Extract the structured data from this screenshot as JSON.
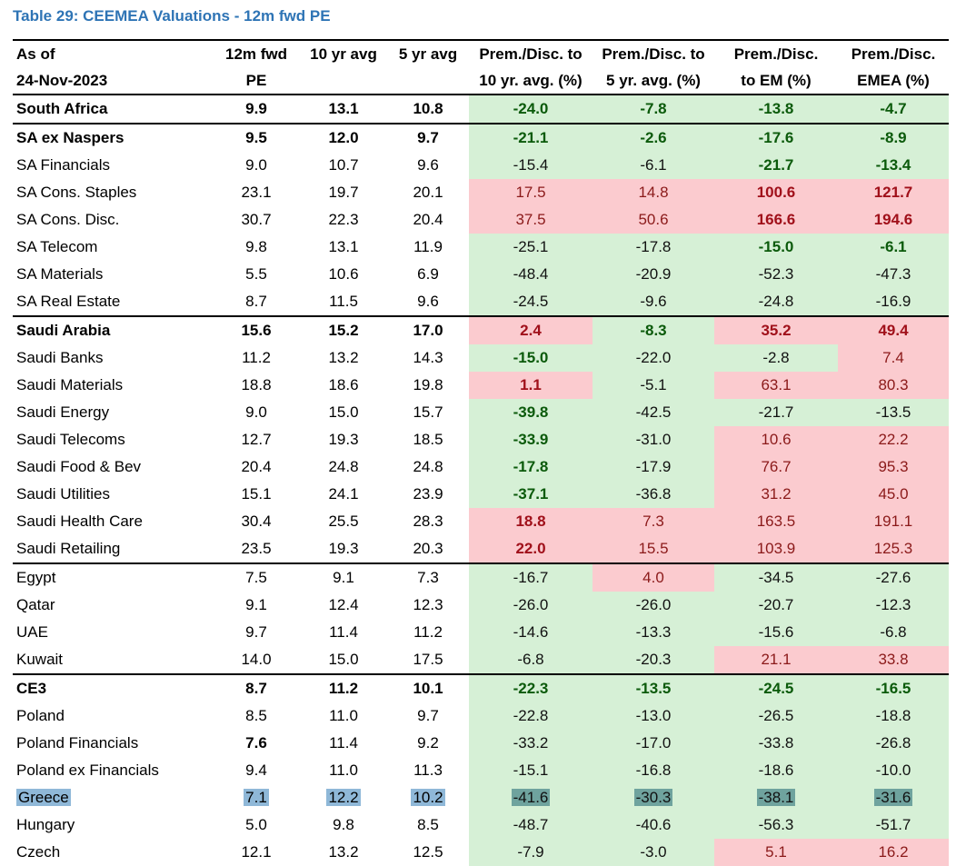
{
  "title": "Table 29: CEEMEA Valuations - 12m fwd PE",
  "header": {
    "row1": [
      "As of",
      "12m fwd",
      "10 yr avg",
      "5 yr avg",
      "Prem./Disc. to",
      "Prem./Disc. to",
      "Prem./Disc.",
      "Prem./Disc."
    ],
    "row2": [
      "24-Nov-2023",
      "PE",
      "",
      "",
      "10 yr. avg. (%)",
      "5 yr. avg. (%)",
      "to EM (%)",
      "EMEA (%)"
    ]
  },
  "colors": {
    "green": "#D6F0D6",
    "red": "#FBCBCF",
    "title": "#2E74B5",
    "highlight": "#8FB8D8"
  },
  "rows": [
    {
      "name": "South Africa",
      "vals": [
        "9.9",
        "13.1",
        "10.8",
        "-24.0",
        "-7.8",
        "-13.8",
        "-4.7"
      ],
      "bold": true,
      "sec": true
    },
    {
      "name": "SA ex Naspers",
      "vals": [
        "9.5",
        "12.0",
        "9.7",
        "-21.1",
        "-2.6",
        "-17.6",
        "-8.9"
      ],
      "bold": true,
      "sec": true
    },
    {
      "name": "SA Financials",
      "vals": [
        "9.0",
        "10.7",
        "9.6",
        "-15.4",
        "-6.1",
        "-21.7",
        "-13.4"
      ]
    },
    {
      "name": "SA Cons. Staples",
      "vals": [
        "23.1",
        "19.7",
        "20.1",
        "17.5",
        "14.8",
        "100.6",
        "121.7"
      ]
    },
    {
      "name": "SA Cons. Disc.",
      "vals": [
        "30.7",
        "22.3",
        "20.4",
        "37.5",
        "50.6",
        "166.6",
        "194.6"
      ]
    },
    {
      "name": "SA Telecom",
      "vals": [
        "9.8",
        "13.1",
        "11.9",
        "-25.1",
        "-17.8",
        "-15.0",
        "-6.1"
      ]
    },
    {
      "name": "SA Materials",
      "vals": [
        "5.5",
        "10.6",
        "6.9",
        "-48.4",
        "-20.9",
        "-52.3",
        "-47.3"
      ]
    },
    {
      "name": "SA Real Estate",
      "vals": [
        "8.7",
        "11.5",
        "9.6",
        "-24.5",
        "-9.6",
        "-24.8",
        "-16.9"
      ]
    },
    {
      "name": "Saudi Arabia",
      "vals": [
        "15.6",
        "15.2",
        "17.0",
        "2.4",
        "-8.3",
        "35.2",
        "49.4"
      ],
      "bold": true,
      "sec": true
    },
    {
      "name": "Saudi Banks",
      "vals": [
        "11.2",
        "13.2",
        "14.3",
        "-15.0",
        "-22.0",
        "-2.8",
        "7.4"
      ]
    },
    {
      "name": "Saudi Materials",
      "vals": [
        "18.8",
        "18.6",
        "19.8",
        "1.1",
        "-5.1",
        "63.1",
        "80.3"
      ]
    },
    {
      "name": "Saudi Energy",
      "vals": [
        "9.0",
        "15.0",
        "15.7",
        "-39.8",
        "-42.5",
        "-21.7",
        "-13.5"
      ]
    },
    {
      "name": "Saudi Telecoms",
      "vals": [
        "12.7",
        "19.3",
        "18.5",
        "-33.9",
        "-31.0",
        "10.6",
        "22.2"
      ]
    },
    {
      "name": "Saudi Food & Bev",
      "vals": [
        "20.4",
        "24.8",
        "24.8",
        "-17.8",
        "-17.9",
        "76.7",
        "95.3"
      ]
    },
    {
      "name": "Saudi Utilities",
      "vals": [
        "15.1",
        "24.1",
        "23.9",
        "-37.1",
        "-36.8",
        "31.2",
        "45.0"
      ]
    },
    {
      "name": "Saudi Health Care",
      "vals": [
        "30.4",
        "25.5",
        "28.3",
        "18.8",
        "7.3",
        "163.5",
        "191.1"
      ]
    },
    {
      "name": "Saudi Retailing",
      "vals": [
        "23.5",
        "19.3",
        "20.3",
        "22.0",
        "15.5",
        "103.9",
        "125.3"
      ]
    },
    {
      "name": "Egypt",
      "vals": [
        "7.5",
        "9.1",
        "7.3",
        "-16.7",
        "4.0",
        "-34.5",
        "-27.6"
      ],
      "sec": true
    },
    {
      "name": "Qatar",
      "vals": [
        "9.1",
        "12.4",
        "12.3",
        "-26.0",
        "-26.0",
        "-20.7",
        "-12.3"
      ]
    },
    {
      "name": "UAE",
      "vals": [
        "9.7",
        "11.4",
        "11.2",
        "-14.6",
        "-13.3",
        "-15.6",
        "-6.8"
      ]
    },
    {
      "name": "Kuwait",
      "vals": [
        "14.0",
        "15.0",
        "17.5",
        "-6.8",
        "-20.3",
        "21.1",
        "33.8"
      ]
    },
    {
      "name": "CE3",
      "vals": [
        "8.7",
        "11.2",
        "10.1",
        "-22.3",
        "-13.5",
        "-24.5",
        "-16.5"
      ],
      "bold": true,
      "sec": true
    },
    {
      "name": "Poland",
      "vals": [
        "8.5",
        "11.0",
        "9.7",
        "-22.8",
        "-13.0",
        "-26.5",
        "-18.8"
      ]
    },
    {
      "name": "Poland Financials",
      "vals": [
        "7.6",
        "11.4",
        "9.2",
        "-33.2",
        "-17.0",
        "-33.8",
        "-26.8"
      ]
    },
    {
      "name": "Poland ex Financials",
      "vals": [
        "9.4",
        "11.0",
        "11.3",
        "-15.1",
        "-16.8",
        "-18.6",
        "-10.0"
      ]
    },
    {
      "name": "Greece",
      "vals": [
        "7.1",
        "12.2",
        "10.2",
        "-41.6",
        "-30.3",
        "-38.1",
        "-31.6"
      ],
      "highlight": true
    },
    {
      "name": "Hungary",
      "vals": [
        "5.0",
        "9.8",
        "8.5",
        "-48.7",
        "-40.6",
        "-56.3",
        "-51.7"
      ]
    },
    {
      "name": "Czech",
      "vals": [
        "12.1",
        "13.2",
        "12.5",
        "-7.9",
        "-3.0",
        "5.1",
        "16.2"
      ]
    }
  ],
  "bold_cells": [
    "0.3",
    "0.4",
    "0.5",
    "0.6",
    "1.2",
    "1.3",
    "1.4",
    "1.5",
    "1.6",
    "2.5",
    "2.6",
    "3.5",
    "3.6",
    "4.5",
    "4.6",
    "5.5",
    "5.6",
    "8.3",
    "8.4",
    "8.5",
    "8.6",
    "9.3",
    "10.3",
    "11.3",
    "12.3",
    "13.3",
    "14.3",
    "15.3",
    "16.3",
    "21.3",
    "21.4",
    "21.5",
    "21.6",
    "23.0"
  ],
  "red_cells": [
    "3.3",
    "3.4",
    "3.5",
    "3.6",
    "4.3",
    "4.4",
    "4.5",
    "4.6",
    "8.3",
    "8.5",
    "8.6",
    "9.6",
    "10.3",
    "10.5",
    "10.6",
    "12.5",
    "12.6",
    "13.5",
    "13.6",
    "14.5",
    "14.6",
    "15.3",
    "15.4",
    "15.5",
    "15.6",
    "16.3",
    "16.4",
    "16.5",
    "16.6",
    "17.4",
    "20.5",
    "20.6",
    "27.5",
    "27.6"
  ]
}
